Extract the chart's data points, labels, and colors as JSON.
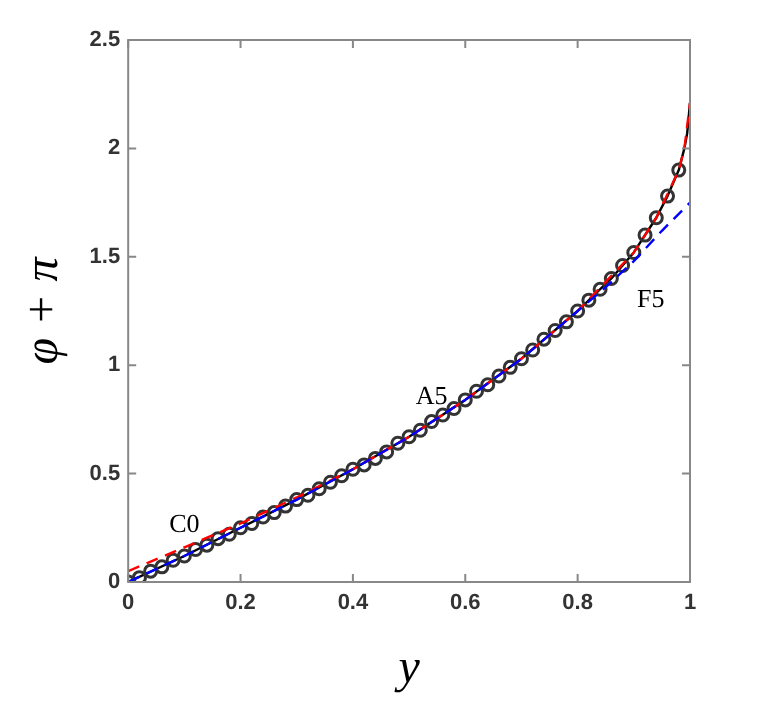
{
  "chart_data": {
    "type": "line",
    "xlabel": "y",
    "ylabel": "φ + π",
    "xlim": [
      0,
      1
    ],
    "ylim": [
      0,
      2.5
    ],
    "xticks": [
      0,
      0.2,
      0.4,
      0.6,
      0.8,
      1
    ],
    "yticks": [
      0,
      0.5,
      1,
      1.5,
      2,
      2.5
    ],
    "grid": false,
    "legend": false,
    "series": [
      {
        "color": "#000000",
        "marker": "none",
        "line_style": "solid",
        "x": [
          0,
          0.1,
          0.2,
          0.3,
          0.4,
          0.5,
          0.6,
          0.7,
          0.8,
          0.86,
          0.9,
          0.94,
          0.96,
          0.98,
          0.99,
          0.995,
          1
        ],
        "values": [
          0,
          0.12,
          0.25,
          0.38,
          0.52,
          0.67,
          0.84,
          1.03,
          1.25,
          1.4,
          1.52,
          1.68,
          1.78,
          1.9,
          2.0,
          2.07,
          2.21
        ]
      },
      {
        "type": "scatter",
        "color": "#333333",
        "marker": "circle",
        "x": [
          0,
          0.02,
          0.04,
          0.06,
          0.08,
          0.1,
          0.12,
          0.14,
          0.16,
          0.18,
          0.2,
          0.22,
          0.24,
          0.26,
          0.28,
          0.3,
          0.32,
          0.34,
          0.36,
          0.38,
          0.4,
          0.42,
          0.44,
          0.46,
          0.48,
          0.5,
          0.52,
          0.54,
          0.56,
          0.58,
          0.6,
          0.62,
          0.64,
          0.66,
          0.68,
          0.7,
          0.72,
          0.74,
          0.76,
          0.78,
          0.8,
          0.82,
          0.84,
          0.86,
          0.88,
          0.9,
          0.92,
          0.94,
          0.96,
          0.98
        ],
        "values": [
          0,
          0.02,
          0.05,
          0.07,
          0.1,
          0.12,
          0.15,
          0.17,
          0.2,
          0.22,
          0.25,
          0.27,
          0.3,
          0.32,
          0.35,
          0.38,
          0.4,
          0.43,
          0.46,
          0.49,
          0.52,
          0.54,
          0.57,
          0.6,
          0.64,
          0.67,
          0.7,
          0.74,
          0.77,
          0.8,
          0.84,
          0.88,
          0.91,
          0.95,
          0.99,
          1.03,
          1.07,
          1.12,
          1.16,
          1.2,
          1.25,
          1.3,
          1.35,
          1.4,
          1.46,
          1.52,
          1.6,
          1.68,
          1.78,
          1.9
        ]
      },
      {
        "color": "#ff0000",
        "marker": "none",
        "line_style": "dashed",
        "x": [
          0,
          0.1,
          0.2,
          0.3,
          0.4,
          0.5,
          0.6,
          0.7,
          0.8,
          0.9,
          0.94,
          0.98,
          0.99,
          1
        ],
        "values": [
          0.05,
          0.16,
          0.27,
          0.39,
          0.52,
          0.67,
          0.84,
          1.03,
          1.25,
          1.52,
          1.68,
          1.9,
          2.0,
          2.21
        ]
      },
      {
        "color": "#0000ff",
        "marker": "none",
        "line_style": "dashed",
        "x": [
          0,
          0.1,
          0.2,
          0.3,
          0.4,
          0.5,
          0.6,
          0.7,
          0.8,
          0.85,
          0.9,
          0.95,
          1
        ],
        "values": [
          0,
          0.12,
          0.25,
          0.38,
          0.52,
          0.67,
          0.84,
          1.03,
          1.25,
          1.36,
          1.48,
          1.62,
          1.75
        ]
      }
    ],
    "annotations": [
      {
        "text": "C0",
        "x": 0.1,
        "y": 0.16
      },
      {
        "text": "A5",
        "x": 0.54,
        "y": 0.74
      },
      {
        "text": "F5",
        "x": 0.93,
        "y": 1.56
      }
    ]
  }
}
